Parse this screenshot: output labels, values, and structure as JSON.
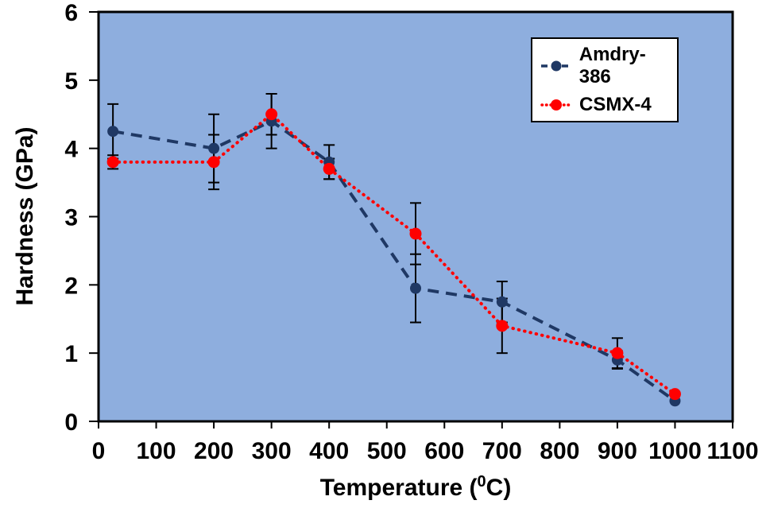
{
  "chart_data": {
    "type": "line",
    "title": "",
    "xlabel": "Temperature (⁰C)",
    "xlabel_parts": {
      "pre": "Temperature (",
      "sup": "0",
      "post": "C)"
    },
    "ylabel": "Hardness (GPa)",
    "xlim": [
      0,
      1100
    ],
    "ylim": [
      0,
      6
    ],
    "x_ticks": [
      0,
      100,
      200,
      300,
      400,
      500,
      600,
      700,
      800,
      900,
      1000,
      1100
    ],
    "y_ticks": [
      0,
      1,
      2,
      3,
      4,
      5,
      6
    ],
    "grid": false,
    "plot_bg": "#8EAEDE",
    "axis_color": "#000000",
    "error_bar_color": "#000000",
    "legend_position": "top-right",
    "series": [
      {
        "name": "Amdry-386",
        "color": "#1F3864",
        "line_style": "dashed",
        "marker": "circle",
        "marker_size": 7,
        "x": [
          25,
          200,
          300,
          400,
          550,
          700,
          900,
          1000
        ],
        "y": [
          4.25,
          4.0,
          4.4,
          3.8,
          1.95,
          1.75,
          0.9,
          0.3
        ],
        "y_err": [
          0.4,
          0.5,
          0.4,
          0.25,
          0.5,
          0.3,
          0.13,
          0
        ]
      },
      {
        "name": "CSMX-4",
        "color": "#FF0000",
        "line_style": "dotted",
        "marker": "circle",
        "marker_size": 7.5,
        "x": [
          25,
          200,
          300,
          400,
          550,
          700,
          900,
          1000
        ],
        "y": [
          3.8,
          3.8,
          4.5,
          3.7,
          2.75,
          1.4,
          1.0,
          0.4
        ],
        "y_err": [
          0.1,
          0.4,
          0.3,
          0.15,
          0.45,
          0.4,
          0.22,
          0
        ]
      }
    ]
  }
}
